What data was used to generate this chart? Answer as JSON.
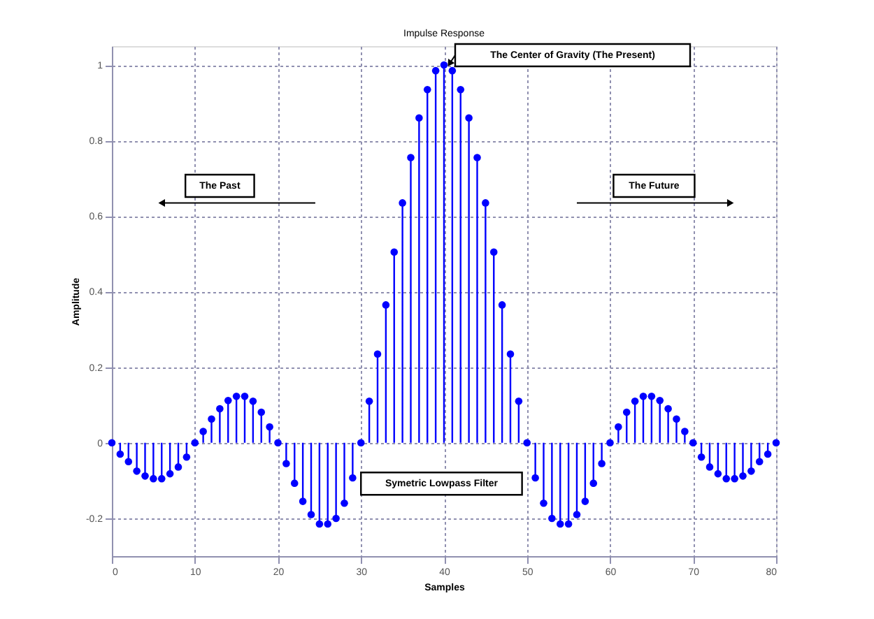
{
  "chart_data": {
    "type": "lollipop",
    "title": "Impulse Response",
    "xlabel": "Samples",
    "ylabel": "Amplitude",
    "x": [
      0,
      1,
      2,
      3,
      4,
      5,
      6,
      7,
      8,
      9,
      10,
      11,
      12,
      13,
      14,
      15,
      16,
      17,
      18,
      19,
      20,
      21,
      22,
      23,
      24,
      25,
      26,
      27,
      28,
      29,
      30,
      31,
      32,
      33,
      34,
      35,
      36,
      37,
      38,
      39,
      40,
      41,
      42,
      43,
      44,
      45,
      46,
      47,
      48,
      49,
      50,
      51,
      52,
      53,
      54,
      55,
      56,
      57,
      58,
      59,
      60,
      61,
      62,
      63,
      64,
      65,
      66,
      67,
      68,
      69,
      70,
      71,
      72,
      73,
      74,
      75,
      76,
      77,
      78,
      79,
      80
    ],
    "series": [
      {
        "color": "#0000ff",
        "values": [
          0,
          -0.03,
          -0.05,
          -0.075,
          -0.088,
          -0.095,
          -0.095,
          -0.082,
          -0.064,
          -0.038,
          0,
          0.03,
          0.063,
          0.09,
          0.112,
          0.123,
          0.123,
          0.11,
          0.081,
          0.042,
          0,
          -0.055,
          -0.107,
          -0.155,
          -0.19,
          -0.215,
          -0.215,
          -0.2,
          -0.16,
          -0.093,
          0,
          0.11,
          0.235,
          0.365,
          0.505,
          0.635,
          0.755,
          0.86,
          0.935,
          0.985,
          1.0,
          0.985,
          0.935,
          0.86,
          0.755,
          0.635,
          0.505,
          0.365,
          0.235,
          0.11,
          0,
          -0.093,
          -0.16,
          -0.2,
          -0.215,
          -0.215,
          -0.19,
          -0.155,
          -0.107,
          -0.055,
          0,
          0.042,
          0.081,
          0.11,
          0.123,
          0.123,
          0.112,
          0.09,
          0.063,
          0.03,
          0,
          -0.038,
          -0.064,
          -0.082,
          -0.095,
          -0.095,
          -0.088,
          -0.075,
          -0.05,
          -0.03,
          0
        ]
      }
    ],
    "xlim": [
      0,
      80
    ],
    "xticks": [
      0,
      10,
      20,
      30,
      40,
      50,
      60,
      70,
      80
    ],
    "ylim": [
      -0.3,
      1.05
    ],
    "yticks": [
      -0.2,
      0,
      0.2,
      0.4,
      0.6,
      0.8,
      1
    ],
    "grid": true,
    "marker": "circle",
    "line_style": "solid",
    "annotations": [
      "The Center of Gravity (The Present)",
      "The Past",
      "The Future",
      "Symetric Lowpass Filter"
    ]
  }
}
